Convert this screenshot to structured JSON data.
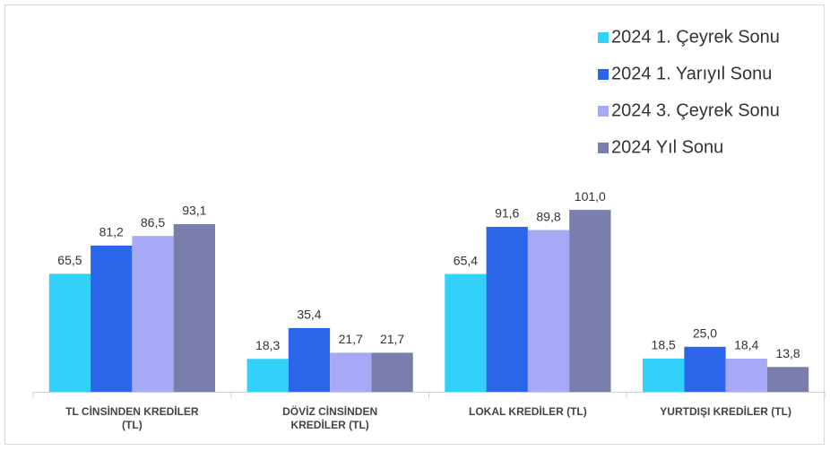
{
  "chart_data": {
    "type": "bar",
    "categories": [
      "TL CİNSİNDEN KREDİLER (TL)",
      "DÖVİZ CİNSİNDEN KREDİLER (TL)",
      "LOKAL KREDİLER (TL)",
      "YURTDIŞI KREDİLER  (TL)"
    ],
    "series": [
      {
        "name": "2024 1. Çeyrek Sonu",
        "color": "#33d0fa",
        "values": [
          65.5,
          18.3,
          65.4,
          18.5
        ],
        "value_labels": [
          "65,5",
          "18,3",
          "65,4",
          "18,5"
        ]
      },
      {
        "name": "2024 1. Yarıyıl Sonu",
        "color": "#2b66ea",
        "values": [
          81.2,
          35.4,
          91.6,
          25.0
        ],
        "value_labels": [
          "81,2",
          "35,4",
          "91,6",
          "25,0"
        ]
      },
      {
        "name": "2024 3. Çeyrek Sonu",
        "color": "#a6a9f6",
        "values": [
          86.5,
          21.7,
          89.8,
          18.4
        ],
        "value_labels": [
          "86,5",
          "21,7",
          "89,8",
          "18,4"
        ]
      },
      {
        "name": "2024 Yıl Sonu",
        "color": "#7a7eac",
        "values": [
          93.1,
          21.7,
          101.0,
          13.8
        ],
        "value_labels": [
          "93,1",
          "21,7",
          "101,0",
          "13,8"
        ]
      }
    ],
    "ylim": [
      0,
      110
    ],
    "legend": "top-right"
  }
}
